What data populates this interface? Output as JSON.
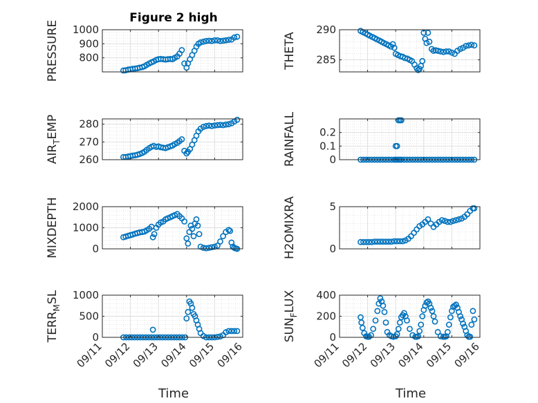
{
  "figure": {
    "title": "Figure 2 high"
  },
  "style": {
    "marker_color": "#0072BD",
    "axis_color": "#262626"
  },
  "chart_data": [
    {
      "type": "scatter",
      "title": "Figure 2 high",
      "ylabel": "PRESSURE",
      "ylabel_sub": "",
      "ylabel_tail": "",
      "xlim": [
        0,
        5
      ],
      "ylim": [
        700,
        1000
      ],
      "yticks": [
        800,
        900,
        1000
      ],
      "x": [
        0.75,
        0.83,
        0.92,
        1.0,
        1.08,
        1.17,
        1.25,
        1.33,
        1.42,
        1.5,
        1.58,
        1.67,
        1.75,
        1.83,
        1.92,
        2.0,
        2.08,
        2.17,
        2.25,
        2.33,
        2.42,
        2.5,
        2.58,
        2.67,
        2.75,
        2.83,
        2.92,
        3.0,
        3.05,
        3.12,
        3.2,
        3.28,
        3.35,
        3.42,
        3.5,
        3.6,
        3.7,
        3.8,
        3.9,
        4.0,
        4.1,
        4.2,
        4.3,
        4.4,
        4.5,
        4.6,
        4.7,
        4.8
      ],
      "y": [
        710,
        712,
        716,
        718,
        722,
        724,
        726,
        730,
        734,
        740,
        750,
        760,
        768,
        775,
        785,
        790,
        792,
        790,
        788,
        790,
        792,
        790,
        800,
        810,
        830,
        855,
        760,
        730,
        760,
        790,
        820,
        850,
        880,
        900,
        910,
        915,
        920,
        922,
        920,
        925,
        925,
        920,
        922,
        925,
        928,
        930,
        945,
        950
      ]
    },
    {
      "type": "scatter",
      "title": "",
      "ylabel": "THETA",
      "ylabel_sub": "",
      "ylabel_tail": "",
      "xlim": [
        0,
        5
      ],
      "ylim": [
        283,
        290
      ],
      "yticks": [
        285,
        290
      ],
      "x": [
        0.75,
        0.83,
        0.92,
        1.0,
        1.08,
        1.17,
        1.25,
        1.33,
        1.42,
        1.5,
        1.58,
        1.67,
        1.75,
        1.83,
        1.9,
        1.95,
        2.0,
        2.08,
        2.17,
        2.25,
        2.33,
        2.42,
        2.5,
        2.58,
        2.67,
        2.75,
        2.8,
        2.85,
        2.9,
        2.95,
        3.0,
        3.05,
        3.1,
        3.15,
        3.2,
        3.28,
        3.35,
        3.42,
        3.5,
        3.6,
        3.7,
        3.8,
        3.9,
        4.0,
        4.1,
        4.2,
        4.3,
        4.4,
        4.5,
        4.6,
        4.7,
        4.8
      ],
      "y": [
        289.8,
        289.6,
        289.4,
        289.2,
        289.0,
        288.8,
        288.6,
        288.4,
        288.2,
        288.0,
        287.8,
        287.6,
        287.4,
        287.2,
        287.6,
        287.0,
        286.0,
        285.8,
        285.6,
        285.5,
        285.3,
        285.2,
        285.0,
        284.8,
        284.2,
        283.6,
        283.3,
        283.5,
        284.0,
        284.8,
        289.5,
        288.5,
        287.8,
        289.5,
        288.0,
        286.8,
        286.5,
        286.6,
        286.5,
        286.4,
        286.3,
        286.4,
        286.4,
        286.2,
        286.0,
        286.5,
        286.8,
        287.0,
        287.3,
        287.4,
        287.5,
        287.4
      ]
    },
    {
      "type": "scatter",
      "title": "",
      "ylabel": "AIR",
      "ylabel_sub": "T",
      "ylabel_tail": "EMP",
      "xlim": [
        0,
        5
      ],
      "ylim": [
        260,
        283
      ],
      "yticks": [
        260,
        270,
        280
      ],
      "x": [
        0.75,
        0.83,
        0.92,
        1.0,
        1.08,
        1.17,
        1.25,
        1.33,
        1.42,
        1.5,
        1.58,
        1.67,
        1.75,
        1.83,
        1.92,
        2.0,
        2.08,
        2.17,
        2.25,
        2.33,
        2.42,
        2.5,
        2.58,
        2.67,
        2.75,
        2.83,
        2.92,
        3.0,
        3.05,
        3.12,
        3.2,
        3.28,
        3.35,
        3.42,
        3.5,
        3.6,
        3.7,
        3.8,
        3.9,
        4.0,
        4.1,
        4.2,
        4.3,
        4.4,
        4.5,
        4.6,
        4.7,
        4.8
      ],
      "y": [
        261.5,
        261.5,
        261.8,
        262.0,
        262.3,
        262.5,
        262.8,
        263.2,
        263.8,
        264.5,
        265.5,
        266.5,
        267.3,
        267.8,
        267.2,
        267.5,
        267.0,
        266.8,
        266.5,
        267.0,
        267.5,
        268.0,
        268.8,
        269.5,
        270.5,
        271.5,
        265.0,
        263.5,
        264.5,
        266.0,
        268.5,
        271.0,
        273.5,
        276.0,
        277.5,
        278.5,
        279.0,
        279.2,
        279.0,
        279.3,
        279.5,
        279.6,
        279.5,
        279.8,
        280.0,
        280.5,
        281.5,
        282.5
      ]
    },
    {
      "type": "scatter",
      "title": "",
      "ylabel": "RAINFALL",
      "ylabel_sub": "",
      "ylabel_tail": "",
      "xlim": [
        0,
        5
      ],
      "ylim": [
        0,
        0.3
      ],
      "yticks": [
        0,
        0.1,
        0.2
      ],
      "x": [
        0.75,
        0.85,
        0.95,
        1.05,
        1.15,
        1.25,
        1.35,
        1.45,
        1.55,
        1.65,
        1.75,
        1.85,
        1.95,
        2.0,
        2.05,
        2.1,
        2.15,
        2.2,
        2.3,
        2.4,
        2.5,
        2.6,
        2.7,
        2.8,
        2.9,
        3.0,
        3.1,
        3.2,
        3.3,
        3.4,
        3.5,
        3.6,
        3.7,
        3.8,
        3.9,
        4.0,
        4.1,
        4.2,
        4.3,
        4.4,
        4.5,
        4.6,
        4.7,
        4.8,
        2.0,
        2.05,
        2.1,
        2.15,
        2.2
      ],
      "y": [
        0,
        0,
        0,
        0,
        0,
        0,
        0,
        0,
        0,
        0,
        0,
        0,
        0,
        0,
        0,
        0,
        0,
        0,
        0,
        0,
        0,
        0,
        0,
        0,
        0,
        0,
        0,
        0,
        0,
        0,
        0,
        0,
        0,
        0,
        0,
        0,
        0,
        0,
        0,
        0,
        0,
        0,
        0,
        0,
        0.1,
        0.1,
        0.29,
        0.29,
        0.29
      ]
    },
    {
      "type": "scatter",
      "title": "",
      "ylabel": "MIXDEPTH",
      "ylabel_sub": "",
      "ylabel_tail": "",
      "xlim": [
        0,
        5
      ],
      "ylim": [
        0,
        2000
      ],
      "yticks": [
        0,
        1000,
        2000
      ],
      "x": [
        0.75,
        0.83,
        0.92,
        1.0,
        1.08,
        1.17,
        1.25,
        1.33,
        1.42,
        1.5,
        1.58,
        1.67,
        1.75,
        1.8,
        1.85,
        1.92,
        2.0,
        2.08,
        2.17,
        2.25,
        2.33,
        2.42,
        2.5,
        2.58,
        2.67,
        2.75,
        2.83,
        2.92,
        3.0,
        3.05,
        3.1,
        3.15,
        3.2,
        3.25,
        3.3,
        3.35,
        3.4,
        3.45,
        3.5,
        3.6,
        3.7,
        3.8,
        3.9,
        4.0,
        4.1,
        4.2,
        4.3,
        4.4,
        4.5,
        4.55,
        4.6,
        4.65,
        4.7,
        4.75,
        4.8
      ],
      "y": [
        550,
        580,
        620,
        650,
        680,
        720,
        750,
        780,
        800,
        820,
        880,
        950,
        1050,
        550,
        700,
        1000,
        1150,
        1250,
        1300,
        1400,
        1450,
        1500,
        1550,
        1600,
        1650,
        1550,
        1450,
        1300,
        500,
        250,
        800,
        1100,
        950,
        600,
        1200,
        1400,
        1100,
        700,
        100,
        50,
        30,
        50,
        80,
        100,
        150,
        350,
        600,
        800,
        900,
        850,
        300,
        100,
        50,
        20,
        0
      ]
    },
    {
      "type": "scatter",
      "title": "",
      "ylabel": "H2OMIXRA",
      "ylabel_sub": "",
      "ylabel_tail": "",
      "xlim": [
        0,
        5
      ],
      "ylim": [
        0,
        5
      ],
      "yticks": [
        0,
        5
      ],
      "x": [
        0.75,
        0.85,
        0.95,
        1.05,
        1.15,
        1.25,
        1.35,
        1.45,
        1.55,
        1.65,
        1.75,
        1.85,
        1.95,
        2.05,
        2.15,
        2.25,
        2.35,
        2.45,
        2.55,
        2.65,
        2.75,
        2.85,
        2.95,
        3.05,
        3.15,
        3.25,
        3.35,
        3.45,
        3.55,
        3.65,
        3.75,
        3.85,
        3.95,
        4.05,
        4.15,
        4.25,
        4.35,
        4.45,
        4.55,
        4.65,
        4.75,
        4.8
      ],
      "y": [
        0.8,
        0.8,
        0.8,
        0.8,
        0.8,
        0.85,
        0.85,
        0.85,
        0.85,
        0.85,
        0.85,
        0.85,
        0.9,
        0.9,
        0.9,
        0.9,
        1.0,
        1.2,
        1.5,
        1.9,
        2.3,
        2.7,
        2.9,
        3.2,
        3.5,
        3.0,
        2.6,
        2.9,
        3.2,
        3.4,
        3.3,
        3.2,
        3.2,
        3.3,
        3.4,
        3.5,
        3.6,
        3.8,
        4.1,
        4.5,
        4.8,
        4.8
      ]
    },
    {
      "type": "scatter",
      "title": "",
      "ylabel": "TERR",
      "ylabel_sub": "M",
      "ylabel_tail": "SL",
      "xlim": [
        0,
        5
      ],
      "ylim": [
        0,
        1000
      ],
      "yticks": [
        0,
        500,
        1000
      ],
      "x": [
        0.75,
        0.85,
        0.95,
        1.05,
        1.15,
        1.25,
        1.35,
        1.45,
        1.55,
        1.65,
        1.75,
        1.8,
        1.85,
        1.95,
        2.05,
        2.15,
        2.25,
        2.35,
        2.45,
        2.55,
        2.65,
        2.75,
        2.85,
        2.95,
        3.0,
        3.05,
        3.1,
        3.15,
        3.2,
        3.25,
        3.3,
        3.35,
        3.4,
        3.45,
        3.5,
        3.6,
        3.7,
        3.8,
        3.9,
        4.0,
        4.1,
        4.2,
        4.3,
        4.4,
        4.5,
        4.6,
        4.7,
        4.8
      ],
      "y": [
        0,
        0,
        0,
        0,
        0,
        0,
        0,
        0,
        0,
        0,
        0,
        180,
        0,
        0,
        0,
        0,
        0,
        0,
        0,
        0,
        0,
        0,
        0,
        0,
        450,
        600,
        850,
        800,
        700,
        550,
        500,
        400,
        300,
        200,
        100,
        30,
        0,
        0,
        0,
        0,
        10,
        20,
        50,
        120,
        150,
        150,
        150,
        150
      ]
    },
    {
      "type": "scatter",
      "title": "",
      "ylabel": "SUN",
      "ylabel_sub": "F",
      "ylabel_tail": "LUX",
      "xlim": [
        0,
        5
      ],
      "ylim": [
        0,
        400
      ],
      "yticks": [
        0,
        200,
        400
      ],
      "x": [
        0.75,
        0.78,
        0.82,
        0.88,
        0.95,
        1.0,
        1.05,
        1.12,
        1.2,
        1.28,
        1.35,
        1.4,
        1.45,
        1.5,
        1.55,
        1.6,
        1.65,
        1.7,
        1.78,
        1.85,
        1.92,
        2.0,
        2.05,
        2.1,
        2.15,
        2.2,
        2.25,
        2.3,
        2.35,
        2.4,
        2.5,
        2.6,
        2.7,
        2.75,
        2.8,
        2.85,
        2.9,
        2.95,
        3.0,
        3.05,
        3.1,
        3.15,
        3.2,
        3.25,
        3.3,
        3.35,
        3.4,
        3.5,
        3.6,
        3.7,
        3.75,
        3.8,
        3.85,
        3.9,
        3.95,
        4.0,
        4.05,
        4.1,
        4.15,
        4.2,
        4.25,
        4.3,
        4.35,
        4.4,
        4.45,
        4.5,
        4.55,
        4.6,
        4.65,
        4.7,
        4.75,
        4.8
      ],
      "y": [
        190,
        140,
        90,
        40,
        10,
        5,
        5,
        20,
        80,
        160,
        250,
        320,
        370,
        340,
        300,
        240,
        140,
        50,
        20,
        10,
        5,
        10,
        30,
        80,
        140,
        190,
        210,
        230,
        200,
        160,
        80,
        20,
        5,
        5,
        10,
        60,
        120,
        200,
        260,
        300,
        330,
        340,
        320,
        280,
        250,
        200,
        150,
        50,
        10,
        5,
        5,
        10,
        50,
        120,
        190,
        250,
        290,
        300,
        310,
        280,
        240,
        200,
        170,
        130,
        100,
        60,
        20,
        5,
        5,
        120,
        250,
        170
      ]
    }
  ],
  "x_axis": {
    "label": "Time",
    "tick_labels": [
      "09/11",
      "09/12",
      "09/13",
      "09/14",
      "09/15",
      "09/16"
    ]
  }
}
